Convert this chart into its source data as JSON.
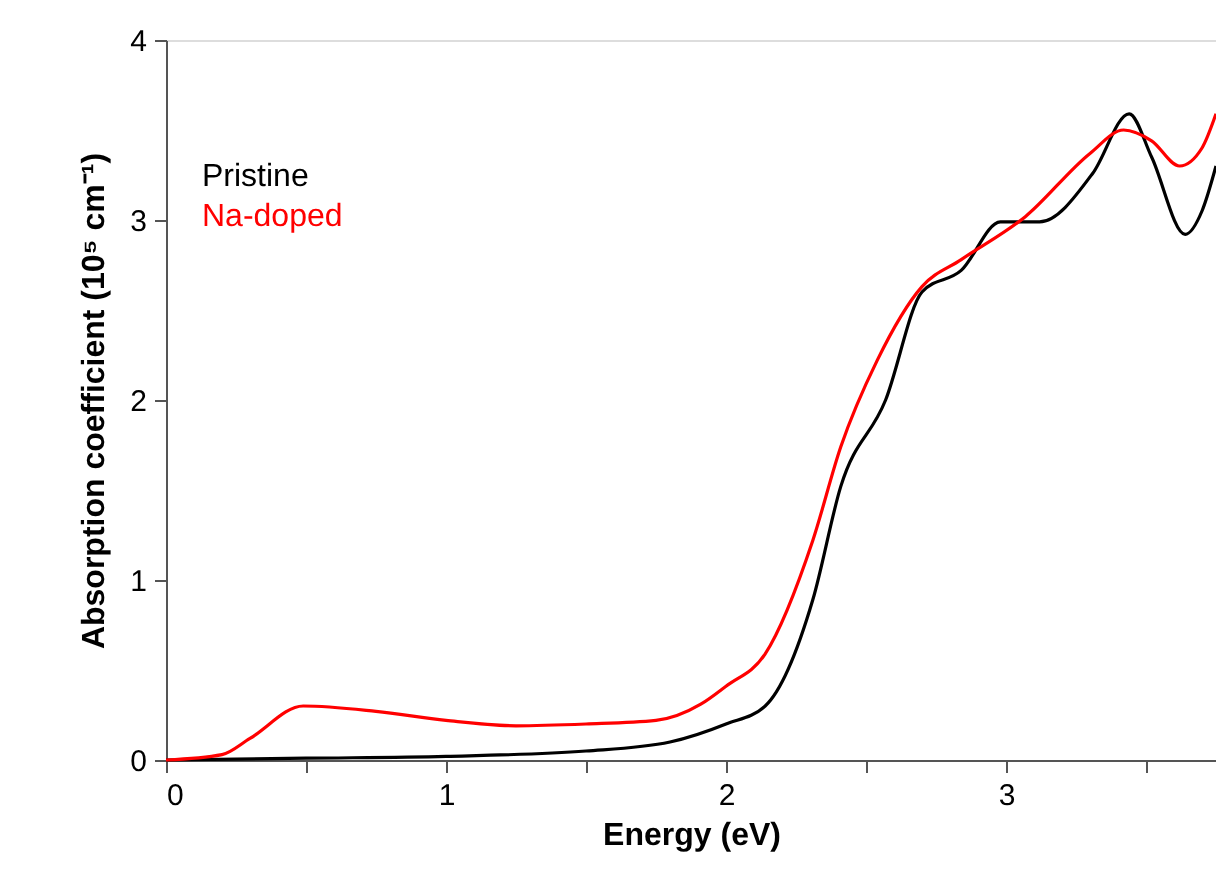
{
  "chart_data": {
    "type": "line",
    "xlabel": "Energy (eV)",
    "ylabel": "Absorption coefficient (10⁵ cm⁻¹)",
    "xlim": [
      0,
      3.75
    ],
    "ylim": [
      0,
      4
    ],
    "xticks": [
      0,
      {
        "value": 0.5,
        "label": null
      },
      1,
      {
        "value": 1.5,
        "label": null
      },
      2,
      {
        "value": 2.5,
        "label": null
      },
      3,
      {
        "value": 3.5,
        "label": null
      }
    ],
    "yticks": [
      0,
      1,
      2,
      3,
      4
    ],
    "grid": false,
    "legend": "top left",
    "marker": "none",
    "line_style": "solid",
    "series": [
      {
        "name": "Pristine",
        "color": "#000000",
        "x": [
          0,
          0.5,
          1,
          1.5,
          1.8,
          2.0,
          2.14,
          2.31,
          2.41,
          2.57,
          2.7,
          2.84,
          2.98,
          3.12,
          3.31,
          3.44,
          3.52,
          3.64,
          3.7,
          3.75
        ],
        "values": [
          0,
          0.01,
          0.02,
          0.05,
          0.1,
          0.2,
          0.3,
          0.89,
          1.52,
          2.0,
          2.6,
          2.72,
          2.99,
          2.99,
          3.26,
          3.59,
          3.35,
          2.92,
          3.05,
          3.3
        ]
      },
      {
        "name": "Na-doped",
        "color": "#ff0000",
        "x": [
          0,
          0.2,
          0.3,
          0.49,
          0.75,
          1.0,
          1.25,
          1.5,
          1.75,
          1.91,
          2.0,
          2.14,
          2.31,
          2.41,
          2.54,
          2.7,
          2.84,
          3.07,
          3.3,
          3.42,
          3.52,
          3.62,
          3.7,
          3.75
        ],
        "values": [
          0,
          0.03,
          0.12,
          0.3,
          0.27,
          0.22,
          0.19,
          0.2,
          0.22,
          0.31,
          0.41,
          0.59,
          1.22,
          1.74,
          2.22,
          2.63,
          2.78,
          3.02,
          3.37,
          3.5,
          3.44,
          3.3,
          3.4,
          3.59
        ]
      }
    ]
  }
}
